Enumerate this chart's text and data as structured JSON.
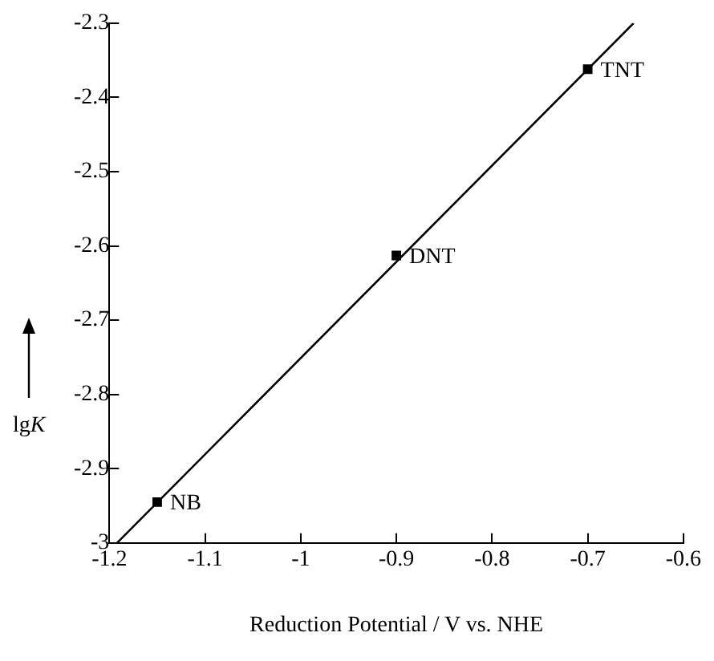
{
  "chart_data": {
    "type": "scatter",
    "xlabel": "Reduction Potential / V vs. NHE",
    "ylabel": "lgK",
    "series": [
      {
        "color": "#000000",
        "x": [
          -1.15,
          -0.9,
          -0.7
        ],
        "values": [
          -2.945,
          -2.613,
          -2.362
        ],
        "marker": "square"
      },
      {
        "type": "line",
        "color": "#000000",
        "x": [
          -1.192,
          -0.652
        ],
        "values": [
          -3,
          -2.3
        ],
        "marker": "none"
      }
    ],
    "xlim": [
      -1.2,
      -0.6
    ],
    "xticks": [
      -1.2,
      -1.1,
      -1,
      -0.9,
      -0.8,
      -0.7,
      -0.6
    ],
    "ylim": [
      -3,
      -2.3
    ],
    "yticks": [
      -3,
      -2.9,
      -2.8,
      -2.7,
      -2.6,
      -2.5,
      -2.4,
      -2.3
    ],
    "grid": false,
    "legend": false,
    "annotations": [
      {
        "text": "NB",
        "x": -1.15,
        "y": -2.945
      },
      {
        "text": "DNT",
        "x": -0.9,
        "y": -2.613
      },
      {
        "text": "TNT",
        "x": -0.7,
        "y": -2.362
      }
    ]
  }
}
